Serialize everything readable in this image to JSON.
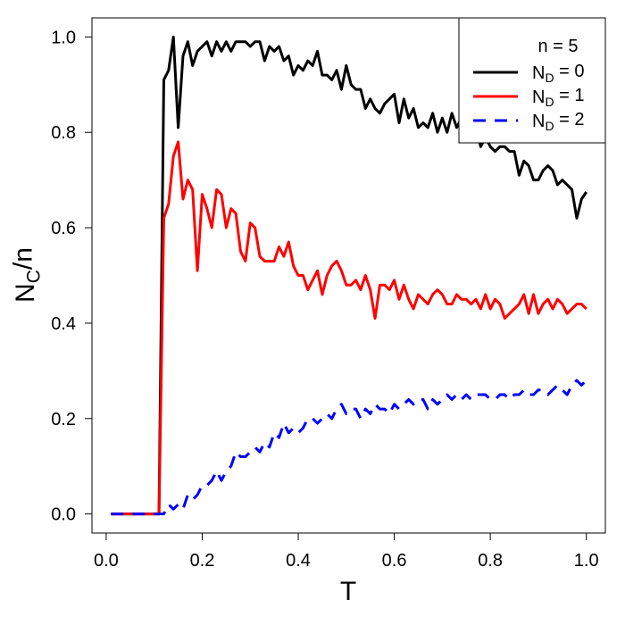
{
  "chart_data": {
    "type": "line",
    "xlabel": "T",
    "ylabel": "NC/n",
    "legend_title": "n = 5",
    "legend": "top-right",
    "xlim": [
      -0.0296,
      1.0396
    ],
    "ylim": [
      -0.04,
      1.04
    ],
    "xticks": [
      {
        "value": 0,
        "label": "0.0"
      },
      {
        "value": 0.2,
        "label": "0.2"
      },
      {
        "value": 0.4,
        "label": "0.4"
      },
      {
        "value": 0.6,
        "label": "0.6"
      },
      {
        "value": 0.8,
        "label": "0.8"
      },
      {
        "value": 1,
        "label": "1.0"
      }
    ],
    "yticks": [
      {
        "value": 0,
        "label": "0.0"
      },
      {
        "value": 0.2,
        "label": "0.2"
      },
      {
        "value": 0.4,
        "label": "0.4"
      },
      {
        "value": 0.6,
        "label": "0.6"
      },
      {
        "value": 0.8,
        "label": "0.8"
      },
      {
        "value": 1,
        "label": "1.0"
      }
    ],
    "x": [
      0.01,
      0.02,
      0.03,
      0.04,
      0.05,
      0.06,
      0.07,
      0.08,
      0.09,
      0.1,
      0.11,
      0.12,
      0.13,
      0.14,
      0.15,
      0.16,
      0.17,
      0.18,
      0.19,
      0.2,
      0.21,
      0.22,
      0.23,
      0.24,
      0.25,
      0.26,
      0.27,
      0.28,
      0.29,
      0.3,
      0.31,
      0.32,
      0.33,
      0.34,
      0.35,
      0.36,
      0.37,
      0.38,
      0.39,
      0.4,
      0.41,
      0.42,
      0.43,
      0.44,
      0.45,
      0.46,
      0.47,
      0.48,
      0.49,
      0.5,
      0.51,
      0.52,
      0.53,
      0.54,
      0.55,
      0.56,
      0.57,
      0.58,
      0.59,
      0.6,
      0.61,
      0.62,
      0.63,
      0.64,
      0.65,
      0.66,
      0.67,
      0.68,
      0.69,
      0.7,
      0.71,
      0.72,
      0.73,
      0.74,
      0.75,
      0.76,
      0.77,
      0.78,
      0.79,
      0.8,
      0.81,
      0.82,
      0.83,
      0.84,
      0.85,
      0.86,
      0.87,
      0.88,
      0.89,
      0.9,
      0.91,
      0.92,
      0.93,
      0.94,
      0.95,
      0.96,
      0.97,
      0.98,
      0.99,
      1.0
    ],
    "series": [
      {
        "name": "ND = 0",
        "color": "#000000",
        "line_style": "solid",
        "values": [
          0,
          0,
          0,
          0,
          0,
          0,
          0,
          0,
          0,
          0,
          0,
          0.91,
          0.93,
          1.0,
          0.81,
          0.96,
          0.99,
          0.94,
          0.97,
          0.98,
          0.99,
          0.96,
          0.99,
          0.97,
          0.99,
          0.97,
          0.99,
          0.99,
          0.99,
          0.98,
          0.99,
          0.99,
          0.95,
          0.98,
          0.97,
          0.98,
          0.95,
          0.96,
          0.92,
          0.94,
          0.93,
          0.95,
          0.94,
          0.97,
          0.92,
          0.92,
          0.91,
          0.93,
          0.89,
          0.94,
          0.9,
          0.89,
          0.89,
          0.85,
          0.87,
          0.85,
          0.84,
          0.86,
          0.87,
          0.88,
          0.82,
          0.87,
          0.83,
          0.85,
          0.81,
          0.82,
          0.81,
          0.84,
          0.8,
          0.83,
          0.8,
          0.84,
          0.81,
          0.83,
          0.8,
          0.78,
          0.81,
          0.77,
          0.79,
          0.77,
          0.76,
          0.77,
          0.77,
          0.76,
          0.76,
          0.71,
          0.74,
          0.73,
          0.7,
          0.7,
          0.72,
          0.73,
          0.72,
          0.69,
          0.7,
          0.69,
          0.68,
          0.62,
          0.66,
          0.675
        ]
      },
      {
        "name": "ND = 1",
        "color": "#ff0000",
        "line_style": "solid",
        "values": [
          0,
          0,
          0,
          0,
          0,
          0,
          0,
          0,
          0,
          0,
          0,
          0.62,
          0.65,
          0.75,
          0.78,
          0.66,
          0.7,
          0.68,
          0.51,
          0.67,
          0.64,
          0.6,
          0.68,
          0.67,
          0.6,
          0.64,
          0.63,
          0.55,
          0.53,
          0.61,
          0.6,
          0.54,
          0.53,
          0.53,
          0.53,
          0.56,
          0.54,
          0.57,
          0.52,
          0.5,
          0.5,
          0.47,
          0.49,
          0.51,
          0.46,
          0.5,
          0.52,
          0.53,
          0.51,
          0.48,
          0.48,
          0.49,
          0.47,
          0.5,
          0.47,
          0.41,
          0.48,
          0.48,
          0.47,
          0.49,
          0.45,
          0.48,
          0.45,
          0.43,
          0.46,
          0.45,
          0.44,
          0.46,
          0.47,
          0.46,
          0.44,
          0.44,
          0.46,
          0.45,
          0.45,
          0.44,
          0.45,
          0.43,
          0.46,
          0.43,
          0.45,
          0.44,
          0.41,
          0.42,
          0.43,
          0.44,
          0.46,
          0.42,
          0.46,
          0.42,
          0.44,
          0.45,
          0.43,
          0.45,
          0.44,
          0.42,
          0.43,
          0.44,
          0.44,
          0.43
        ]
      },
      {
        "name": "ND = 2",
        "color": "#0000ff",
        "line_style": "dashed",
        "values": [
          0,
          0,
          0,
          0,
          0,
          0,
          0,
          0,
          0,
          0,
          0,
          0,
          0.02,
          0.01,
          0.02,
          0.01,
          0.04,
          0.03,
          0.04,
          0.06,
          0.06,
          0.07,
          0.09,
          0.07,
          0.09,
          0.1,
          0.13,
          0.12,
          0.12,
          0.13,
          0.14,
          0.13,
          0.15,
          0.14,
          0.17,
          0.16,
          0.19,
          0.17,
          0.18,
          0.17,
          0.18,
          0.2,
          0.2,
          0.19,
          0.2,
          0.21,
          0.2,
          0.22,
          0.23,
          0.21,
          0.22,
          0.22,
          0.2,
          0.22,
          0.21,
          0.23,
          0.22,
          0.22,
          0.21,
          0.23,
          0.22,
          0.23,
          0.24,
          0.23,
          0.24,
          0.24,
          0.22,
          0.24,
          0.23,
          0.24,
          0.25,
          0.24,
          0.25,
          0.24,
          0.25,
          0.24,
          0.25,
          0.25,
          0.25,
          0.24,
          0.24,
          0.25,
          0.25,
          0.24,
          0.25,
          0.25,
          0.26,
          0.25,
          0.25,
          0.26,
          0.26,
          0.25,
          0.26,
          0.27,
          0.26,
          0.25,
          0.27,
          0.28,
          0.27,
          0.28
        ]
      }
    ]
  }
}
